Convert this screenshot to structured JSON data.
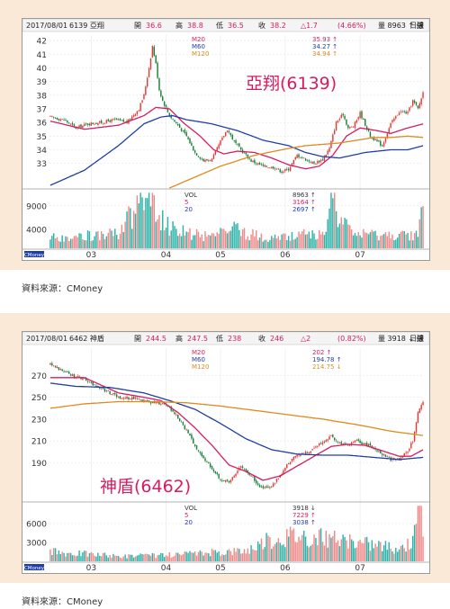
{
  "chart_data": [
    {
      "type": "candlestick",
      "header": {
        "date": "2017/08/01",
        "stock": "6139 亞翔",
        "open_label": "開",
        "open": "36.6",
        "high_label": "高",
        "high": "38.8",
        "low_label": "低",
        "low": "36.5",
        "close_label": "收",
        "close": "38.2",
        "change": "△1.7",
        "pct": "(4.66%)",
        "volume": "量 8963 ↑ 張",
        "period": "日線"
      },
      "ma_legend": [
        {
          "name": "M20",
          "value": "35.93 ↑",
          "color": "#d81b60"
        },
        {
          "name": "M60",
          "value": "34.27 ↑",
          "color": "#1f3ea8"
        },
        {
          "name": "M120",
          "value": "34.94 ↑",
          "color": "#e08a1e"
        }
      ],
      "vol_legend": [
        {
          "name": "VOL",
          "value": "8963 ↑"
        },
        {
          "name": "5",
          "value": "3164 ↑"
        },
        {
          "name": "20",
          "value": "2697 ↑"
        }
      ],
      "annotation": "亞翔(6139)",
      "y_ticks": [
        42,
        41,
        40,
        39,
        38,
        37,
        36,
        35,
        34,
        33
      ],
      "ylim": [
        31.2,
        42.4
      ],
      "vol_ticks": [
        9000,
        4000
      ],
      "vol_max": 12000,
      "x_ticks": [
        "03",
        "04",
        "05",
        "06",
        "07"
      ],
      "x_tick_idx": [
        24,
        68,
        100,
        138,
        182
      ],
      "badge": "CMoney",
      "source": "資料來源：CMoney",
      "n": 220,
      "waypoints": [
        [
          0,
          36.4
        ],
        [
          8,
          36.2
        ],
        [
          15,
          35.6
        ],
        [
          22,
          35.9
        ],
        [
          30,
          36.0
        ],
        [
          38,
          36.2
        ],
        [
          45,
          36.0
        ],
        [
          52,
          37.0
        ],
        [
          55,
          38.0
        ],
        [
          58,
          40.0
        ],
        [
          60,
          41.6
        ],
        [
          62,
          40.3
        ],
        [
          64,
          38.4
        ],
        [
          66,
          37.6
        ],
        [
          70,
          36.5
        ],
        [
          75,
          35.8
        ],
        [
          80,
          35.0
        ],
        [
          85,
          33.8
        ],
        [
          90,
          33.2
        ],
        [
          95,
          33.3
        ],
        [
          100,
          34.6
        ],
        [
          104,
          35.5
        ],
        [
          108,
          34.6
        ],
        [
          112,
          34.0
        ],
        [
          118,
          33.2
        ],
        [
          125,
          32.8
        ],
        [
          132,
          32.7
        ],
        [
          136,
          32.4
        ],
        [
          140,
          32.6
        ],
        [
          145,
          33.6
        ],
        [
          150,
          33.3
        ],
        [
          155,
          33.0
        ],
        [
          160,
          33.3
        ],
        [
          164,
          34.1
        ],
        [
          168,
          36.0
        ],
        [
          172,
          36.6
        ],
        [
          175,
          35.6
        ],
        [
          178,
          35.7
        ],
        [
          182,
          36.7
        ],
        [
          188,
          35.0
        ],
        [
          195,
          34.3
        ],
        [
          200,
          35.9
        ],
        [
          205,
          36.8
        ],
        [
          210,
          36.7
        ],
        [
          213,
          37.6
        ],
        [
          216,
          37.0
        ],
        [
          219,
          38.2
        ]
      ],
      "ma_waypoints": [
        [
          [
            0,
            36.1
          ],
          [
            20,
            35.5
          ],
          [
            40,
            35.8
          ],
          [
            55,
            36.5
          ],
          [
            62,
            37.1
          ],
          [
            70,
            37.0
          ],
          [
            78,
            36.0
          ],
          [
            88,
            35.0
          ],
          [
            96,
            34.0
          ],
          [
            102,
            33.7
          ],
          [
            110,
            33.9
          ],
          [
            120,
            33.8
          ],
          [
            130,
            33.4
          ],
          [
            140,
            32.9
          ],
          [
            150,
            32.6
          ],
          [
            158,
            32.8
          ],
          [
            166,
            33.6
          ],
          [
            174,
            35.0
          ],
          [
            182,
            35.6
          ],
          [
            192,
            35.4
          ],
          [
            200,
            35.2
          ],
          [
            210,
            35.6
          ],
          [
            219,
            35.9
          ]
        ],
        [
          [
            0,
            31.4
          ],
          [
            20,
            32.5
          ],
          [
            40,
            34.3
          ],
          [
            55,
            35.9
          ],
          [
            65,
            36.4
          ],
          [
            72,
            36.5
          ],
          [
            80,
            36.2
          ],
          [
            95,
            35.9
          ],
          [
            110,
            35.4
          ],
          [
            125,
            34.7
          ],
          [
            140,
            34.3
          ],
          [
            150,
            33.8
          ],
          [
            160,
            33.5
          ],
          [
            170,
            33.4
          ],
          [
            185,
            33.8
          ],
          [
            200,
            34.0
          ],
          [
            210,
            34.0
          ],
          [
            219,
            34.3
          ]
        ],
        [
          [
            70,
            31.2
          ],
          [
            85,
            32.0
          ],
          [
            100,
            32.8
          ],
          [
            120,
            33.6
          ],
          [
            140,
            34.1
          ],
          [
            150,
            34.3
          ],
          [
            160,
            34.4
          ],
          [
            170,
            34.5
          ],
          [
            180,
            34.7
          ],
          [
            190,
            34.9
          ],
          [
            200,
            34.9
          ],
          [
            210,
            35.0
          ],
          [
            219,
            34.9
          ]
        ]
      ],
      "vol_waypoints": [
        [
          0,
          2200
        ],
        [
          20,
          2600
        ],
        [
          40,
          3000
        ],
        [
          45,
          6500
        ],
        [
          50,
          8000
        ],
        [
          56,
          11500
        ],
        [
          60,
          9000
        ],
        [
          64,
          7000
        ],
        [
          70,
          4200
        ],
        [
          80,
          3400
        ],
        [
          90,
          2600
        ],
        [
          100,
          3300
        ],
        [
          106,
          5000
        ],
        [
          112,
          3500
        ],
        [
          120,
          2700
        ],
        [
          130,
          2300
        ],
        [
          140,
          2200
        ],
        [
          150,
          3100
        ],
        [
          160,
          2600
        ],
        [
          165,
          12000
        ],
        [
          168,
          6500
        ],
        [
          172,
          5000
        ],
        [
          178,
          2900
        ],
        [
          190,
          2700
        ],
        [
          200,
          2600
        ],
        [
          210,
          2800
        ],
        [
          216,
          3200
        ],
        [
          219,
          8963
        ]
      ]
    },
    {
      "type": "candlestick",
      "header": {
        "date": "2017/08/01",
        "stock": "6462 神盾",
        "open_label": "開",
        "open": "244.5",
        "high_label": "高",
        "high": "247.5",
        "low_label": "低",
        "low": "238",
        "close_label": "收",
        "close": "246",
        "change": "△2",
        "pct": "(0.82%)",
        "volume": "量 3918 ↓ 張",
        "period": "日線"
      },
      "ma_legend": [
        {
          "name": "M20",
          "value": "202 ↑",
          "color": "#d81b60"
        },
        {
          "name": "M60",
          "value": "194.78 ↑",
          "color": "#1f3ea8"
        },
        {
          "name": "M120",
          "value": "214.75 ↓",
          "color": "#e08a1e"
        }
      ],
      "vol_legend": [
        {
          "name": "VOL",
          "value": "3918 ↓"
        },
        {
          "name": "5",
          "value": "7229 ↑"
        },
        {
          "name": "20",
          "value": "3038 ↑"
        }
      ],
      "annotation": "神盾(6462)",
      "y_ticks": [
        270,
        250,
        230,
        210,
        190
      ],
      "ylim": [
        155,
        295
      ],
      "vol_ticks": [
        6000,
        3000
      ],
      "vol_max": 9000,
      "x_ticks": [
        "03",
        "04",
        "05",
        "06",
        "07"
      ],
      "x_tick_idx": [
        24,
        68,
        100,
        138,
        182
      ],
      "badge": "CMoney",
      "source": "資料來源：CMoney",
      "n": 220,
      "waypoints": [
        [
          0,
          280
        ],
        [
          10,
          272
        ],
        [
          20,
          266
        ],
        [
          30,
          258
        ],
        [
          40,
          250
        ],
        [
          50,
          249
        ],
        [
          60,
          245
        ],
        [
          68,
          244
        ],
        [
          75,
          232
        ],
        [
          82,
          214
        ],
        [
          88,
          198
        ],
        [
          95,
          185
        ],
        [
          100,
          175
        ],
        [
          105,
          172
        ],
        [
          112,
          188
        ],
        [
          118,
          178
        ],
        [
          124,
          167
        ],
        [
          130,
          168
        ],
        [
          135,
          178
        ],
        [
          140,
          190
        ],
        [
          145,
          197
        ],
        [
          150,
          199
        ],
        [
          155,
          203
        ],
        [
          160,
          209
        ],
        [
          165,
          214
        ],
        [
          170,
          208
        ],
        [
          175,
          206
        ],
        [
          180,
          210
        ],
        [
          185,
          207
        ],
        [
          190,
          204
        ],
        [
          195,
          198
        ],
        [
          200,
          193
        ],
        [
          205,
          193
        ],
        [
          210,
          201
        ],
        [
          213,
          210
        ],
        [
          216,
          236
        ],
        [
          219,
          246
        ]
      ],
      "ma_waypoints": [
        [
          [
            0,
            268
          ],
          [
            20,
            268
          ],
          [
            40,
            254
          ],
          [
            55,
            250
          ],
          [
            65,
            247
          ],
          [
            75,
            236
          ],
          [
            85,
            222
          ],
          [
            95,
            206
          ],
          [
            105,
            188
          ],
          [
            115,
            182
          ],
          [
            125,
            174
          ],
          [
            135,
            178
          ],
          [
            145,
            187
          ],
          [
            155,
            196
          ],
          [
            165,
            205
          ],
          [
            175,
            207
          ],
          [
            185,
            206
          ],
          [
            195,
            201
          ],
          [
            205,
            196
          ],
          [
            212,
            196
          ],
          [
            219,
            202
          ]
        ],
        [
          [
            0,
            263
          ],
          [
            15,
            260
          ],
          [
            35,
            259
          ],
          [
            55,
            254
          ],
          [
            70,
            247
          ],
          [
            85,
            239
          ],
          [
            100,
            226
          ],
          [
            115,
            212
          ],
          [
            130,
            202
          ],
          [
            145,
            198
          ],
          [
            160,
            197
          ],
          [
            175,
            197
          ],
          [
            190,
            195
          ],
          [
            205,
            193
          ],
          [
            219,
            195
          ]
        ],
        [
          [
            0,
            240
          ],
          [
            20,
            244
          ],
          [
            40,
            246
          ],
          [
            60,
            246
          ],
          [
            80,
            245
          ],
          [
            100,
            242
          ],
          [
            120,
            238
          ],
          [
            140,
            234
          ],
          [
            160,
            230
          ],
          [
            180,
            225
          ],
          [
            200,
            219
          ],
          [
            219,
            215
          ]
        ]
      ],
      "vol_waypoints": [
        [
          0,
          1500
        ],
        [
          20,
          1200
        ],
        [
          40,
          800
        ],
        [
          60,
          900
        ],
        [
          80,
          1100
        ],
        [
          100,
          1500
        ],
        [
          115,
          1700
        ],
        [
          125,
          3000
        ],
        [
          135,
          3800
        ],
        [
          145,
          4200
        ],
        [
          155,
          3800
        ],
        [
          165,
          3500
        ],
        [
          175,
          3000
        ],
        [
          185,
          2800
        ],
        [
          195,
          2500
        ],
        [
          205,
          2100
        ],
        [
          212,
          3000
        ],
        [
          214,
          8500
        ],
        [
          216,
          7000
        ],
        [
          218,
          8000
        ],
        [
          219,
          3918
        ]
      ]
    }
  ]
}
